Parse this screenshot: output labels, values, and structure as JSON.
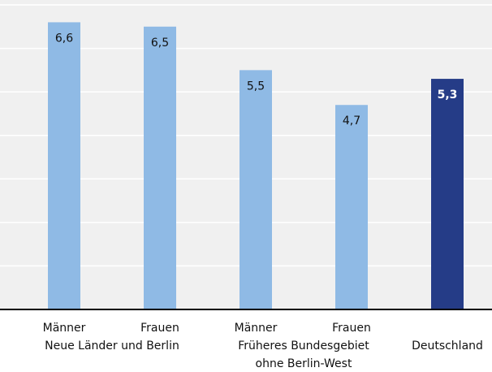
{
  "chart_data": {
    "type": "bar",
    "categories": [
      "Männer",
      "Frauen",
      "Männer",
      "Frauen",
      "Deutschland"
    ],
    "group_labels": [
      [
        "Neue Länder und Berlin"
      ],
      [
        "Früheres Bundesgebiet",
        "ohne Berlin-West"
      ]
    ],
    "values": [
      6.6,
      6.5,
      5.5,
      4.7,
      5.3
    ],
    "value_labels": [
      "6,6",
      "6,5",
      "5,5",
      "4,7",
      "5,3"
    ],
    "colors": [
      "#8fbae5",
      "#8fbae5",
      "#8fbae5",
      "#8fbae5",
      "#253c87"
    ],
    "ylim": [
      0,
      7
    ],
    "yticks": [
      0,
      1,
      2,
      3,
      4,
      5,
      6,
      7
    ],
    "grid": true
  }
}
